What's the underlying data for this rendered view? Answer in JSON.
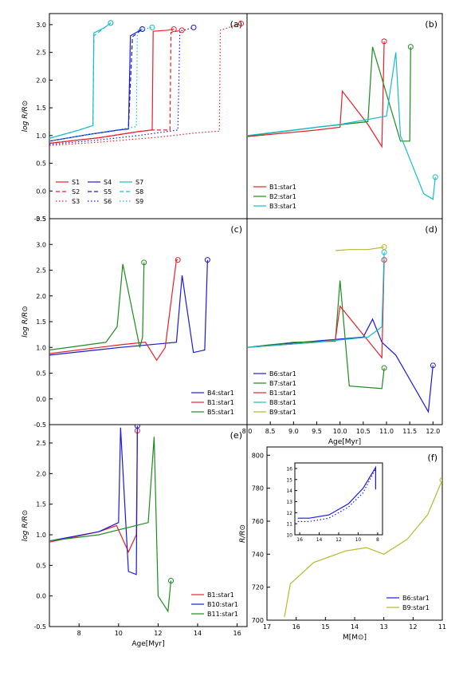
{
  "chart_data": [
    {
      "panel": "(a)",
      "type": "line",
      "xlabel": "",
      "ylabel": "log R/R⊙",
      "xlim": [
        6.5,
        16.5
      ],
      "ylim": [
        -0.5,
        3.2
      ],
      "xticks": [],
      "yticks": [
        "-0.5",
        "0.0",
        "0.5",
        "1.0",
        "1.5",
        "2.0",
        "2.5",
        "3.0"
      ],
      "legend": "bottom-left",
      "series": [
        {
          "name": "S1",
          "color": "#e8202a",
          "dash": "solid",
          "x": [
            6.5,
            9,
            11,
            11.7,
            11.75,
            12.5,
            12.8
          ],
          "y": [
            0.86,
            0.96,
            1.07,
            1.1,
            2.88,
            2.9,
            2.92
          ]
        },
        {
          "name": "S2",
          "color": "#e8202a",
          "dash": "dashed",
          "x": [
            6.5,
            9,
            11,
            11.7,
            12.6,
            12.65,
            13.2
          ],
          "y": [
            0.86,
            0.96,
            1.07,
            1.1,
            1.1,
            2.86,
            2.9
          ]
        },
        {
          "name": "S3",
          "color": "#e8202a",
          "dash": "dotted",
          "x": [
            6.5,
            9,
            12,
            14,
            15.1,
            15.15,
            16.2
          ],
          "y": [
            0.82,
            0.88,
            0.97,
            1.05,
            1.08,
            2.9,
            3.02
          ]
        },
        {
          "name": "S4",
          "color": "#1a1ad6",
          "dash": "solid",
          "x": [
            6.5,
            8.5,
            10,
            10.5,
            10.6,
            11.2
          ],
          "y": [
            0.9,
            1.02,
            1.1,
            1.12,
            2.8,
            2.92
          ]
        },
        {
          "name": "S5",
          "color": "#1a1ad6",
          "dash": "dashed",
          "x": [
            6.5,
            8.5,
            10,
            10.5,
            10.7,
            11.2
          ],
          "y": [
            0.9,
            1.02,
            1.1,
            1.12,
            2.78,
            2.92
          ]
        },
        {
          "name": "S6",
          "color": "#1a1ad6",
          "dash": "dotted",
          "x": [
            6.5,
            9,
            11,
            13,
            13.1,
            13.8
          ],
          "y": [
            0.84,
            0.92,
            1.0,
            1.1,
            2.88,
            2.95
          ]
        },
        {
          "name": "S7",
          "color": "#17bdcf",
          "dash": "solid",
          "x": [
            6.5,
            8,
            8.7,
            8.75,
            9.3,
            9.6
          ],
          "y": [
            0.95,
            1.1,
            1.18,
            2.85,
            2.95,
            3.03
          ]
        },
        {
          "name": "S8",
          "color": "#17bdcf",
          "dash": "dashed",
          "x": [
            6.5,
            8,
            8.7,
            8.75,
            9.3,
            9.6
          ],
          "y": [
            0.95,
            1.1,
            1.18,
            2.8,
            2.95,
            3.03
          ]
        },
        {
          "name": "S9",
          "color": "#17bdcf",
          "dash": "dotted",
          "x": [
            6.5,
            9,
            10.9,
            10.95,
            11.7
          ],
          "y": [
            0.9,
            1.05,
            1.16,
            2.9,
            2.95
          ]
        }
      ]
    },
    {
      "panel": "(b)",
      "type": "line",
      "xlabel": "",
      "ylabel": "",
      "xlim": [
        8.0,
        12.2
      ],
      "ylim": [
        -0.5,
        3.2
      ],
      "xticks": [],
      "yticks": [],
      "legend": "bottom-left",
      "series": [
        {
          "name": "B1:star1",
          "color": "#e8202a",
          "x": [
            8,
            9.5,
            10.0,
            10.05,
            10.6,
            10.9,
            10.95,
            10.95
          ],
          "y": [
            0.98,
            1.1,
            1.15,
            1.8,
            1.2,
            0.8,
            2.7,
            2.7
          ]
        },
        {
          "name": "B2:star1",
          "color": "#1f8a1f",
          "x": [
            8,
            9.5,
            10.6,
            10.7,
            11.3,
            11.5,
            11.52
          ],
          "y": [
            0.99,
            1.15,
            1.25,
            2.6,
            0.9,
            0.9,
            2.6
          ]
        },
        {
          "name": "B3:star1",
          "color": "#17bdcf",
          "x": [
            8,
            10,
            11.0,
            11.2,
            11.3,
            11.8,
            12.0,
            12.05
          ],
          "y": [
            1.0,
            1.2,
            1.35,
            2.5,
            1.0,
            -0.05,
            -0.15,
            0.25
          ]
        }
      ]
    },
    {
      "panel": "(c)",
      "type": "line",
      "xlabel": "",
      "ylabel": "log R/R⊙",
      "xlim": [
        6.5,
        13.5
      ],
      "ylim": [
        -0.5,
        3.5
      ],
      "xticks": [],
      "yticks": [
        "-0.5",
        "0.0",
        "0.5",
        "1.0",
        "1.5",
        "2.0",
        "2.5",
        "3.0",
        "3.5"
      ],
      "legend": "bottom-right",
      "series": [
        {
          "name": "B4:star1",
          "color": "#1a1ad6",
          "x": [
            6.5,
            9,
            11.0,
            11.2,
            11.6,
            12.0,
            12.1
          ],
          "y": [
            0.85,
            1.0,
            1.1,
            2.4,
            0.9,
            0.95,
            2.7
          ]
        },
        {
          "name": "B1:star1",
          "color": "#e8202a",
          "x": [
            6.5,
            9,
            9.9,
            10.3,
            10.6,
            11.0,
            11.05
          ],
          "y": [
            0.88,
            1.05,
            1.1,
            0.75,
            1.0,
            2.7,
            2.7
          ]
        },
        {
          "name": "B5:star1",
          "color": "#1f8a1f",
          "x": [
            6.5,
            8.5,
            8.9,
            9.1,
            9.7,
            9.8,
            9.85
          ],
          "y": [
            0.95,
            1.1,
            1.4,
            2.62,
            1.0,
            1.2,
            2.65
          ]
        }
      ]
    },
    {
      "panel": "(d)",
      "type": "line",
      "xlabel": "Age[Myr]",
      "ylabel": "",
      "xlim": [
        8.0,
        12.2
      ],
      "ylim": [
        -0.5,
        3.5
      ],
      "xticks": [
        "8.0",
        "8.5",
        "9.0",
        "9.5",
        "10.0",
        "10.5",
        "11.0",
        "11.5",
        "12.0"
      ],
      "yticks": [],
      "legend": "bottom-left",
      "series": [
        {
          "name": "B6:star1",
          "color": "#1a1ad6",
          "x": [
            8,
            8.5,
            10.5,
            10.7,
            10.9,
            11.2,
            11.9,
            12.0
          ],
          "y": [
            1.0,
            1.05,
            1.2,
            1.55,
            1.1,
            0.85,
            -0.25,
            0.65
          ]
        },
        {
          "name": "B7:star1",
          "color": "#1f8a1f",
          "x": [
            8,
            9.0,
            9.9,
            10.0,
            10.2,
            10.9,
            10.95
          ],
          "y": [
            1.0,
            1.1,
            1.12,
            2.3,
            0.25,
            0.2,
            0.6
          ]
        },
        {
          "name": "B1:star1",
          "color": "#e8202a",
          "x": [
            8,
            9.5,
            9.9,
            10.0,
            10.9,
            10.95
          ],
          "y": [
            1.0,
            1.1,
            1.15,
            1.8,
            0.8,
            2.7
          ]
        },
        {
          "name": "B8:star1",
          "color": "#17bdcf",
          "x": [
            8,
            9.5,
            10.6,
            10.9,
            10.95
          ],
          "y": [
            1.0,
            1.1,
            1.2,
            1.4,
            2.85
          ]
        },
        {
          "name": "B9:star1",
          "color": "#b8b82a",
          "x": [
            9.9,
            10.2,
            10.6,
            10.95
          ],
          "y": [
            2.88,
            2.9,
            2.9,
            2.95
          ]
        }
      ]
    },
    {
      "panel": "(e)",
      "type": "line",
      "xlabel": "Age[Myr]",
      "ylabel": "log R/R⊙",
      "xlim": [
        6.5,
        16.5
      ],
      "ylim": [
        -0.5,
        2.8
      ],
      "xticks": [
        "8",
        "10",
        "12",
        "14",
        "16"
      ],
      "yticks": [
        "-0.5",
        "0.0",
        "0.5",
        "1.0",
        "1.5",
        "2.0",
        "2.5"
      ],
      "legend": "bottom-right",
      "series": [
        {
          "name": "B1:star1",
          "color": "#e8202a",
          "x": [
            6.5,
            9,
            9.9,
            10.5,
            10.9,
            10.95
          ],
          "y": [
            0.88,
            1.05,
            1.15,
            0.72,
            1.0,
            2.7
          ]
        },
        {
          "name": "B10:star1",
          "color": "#1a1ad6",
          "x": [
            6.5,
            9,
            10.0,
            10.1,
            10.5,
            10.9,
            10.95
          ],
          "y": [
            0.9,
            1.05,
            1.2,
            2.75,
            0.4,
            0.35,
            2.78
          ]
        },
        {
          "name": "B11:star1",
          "color": "#1f8a1f",
          "x": [
            6.5,
            9,
            11.5,
            11.8,
            12.0,
            12.5,
            12.65
          ],
          "y": [
            0.9,
            1.0,
            1.2,
            2.6,
            0.0,
            -0.25,
            0.25
          ]
        }
      ]
    },
    {
      "panel": "(f)",
      "type": "line",
      "xlabel": "M[M⊙]",
      "ylabel": "R/R⊙",
      "xlim": [
        17,
        11
      ],
      "ylim": [
        700,
        805
      ],
      "xticks": [
        "17",
        "16",
        "15",
        "14",
        "13",
        "12",
        "11"
      ],
      "yticks": [
        "700",
        "720",
        "740",
        "760",
        "780",
        "800"
      ],
      "legend": "bottom-right",
      "series": [
        {
          "name": "B6:star1",
          "color": "#1a1ad6",
          "x": [],
          "y": []
        },
        {
          "name": "B9:star1",
          "color": "#b8b82a",
          "x": [
            16.4,
            16.2,
            15.4,
            14.3,
            13.6,
            13.0,
            12.2,
            11.5,
            11.0
          ],
          "y": [
            702,
            722,
            735,
            742,
            744,
            740,
            749,
            764,
            785
          ]
        }
      ],
      "inset": {
        "xlim": [
          16.5,
          7.5
        ],
        "ylim": [
          10,
          16.5
        ],
        "xticks": [
          "16",
          "14",
          "12",
          "10",
          "8"
        ],
        "yticks": [
          "10",
          "11",
          "12",
          "13",
          "14",
          "15",
          "16"
        ],
        "series": [
          {
            "name": "B6:star1",
            "color": "#1a1ad6",
            "x": [
              16.2,
              15,
              13,
              11,
              9.5,
              8.2,
              8.2
            ],
            "y": [
              11.5,
              11.5,
              11.8,
              12.8,
              14.2,
              16.1,
              14.1
            ]
          },
          {
            "name": "B6:star1 dotted",
            "color": "#1a1ad6",
            "dash": "dotted",
            "x": [
              16.2,
              15,
              13,
              11,
              9.5,
              8.2
            ],
            "y": [
              11.2,
              11.2,
              11.5,
              12.5,
              13.8,
              16.0
            ]
          }
        ]
      }
    }
  ]
}
